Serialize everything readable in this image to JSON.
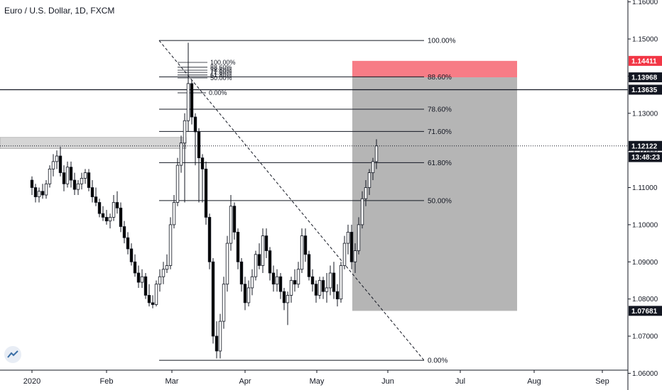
{
  "title": "Euro / U.S. Dollar, 1D, FXCM",
  "chart_data": {
    "type": "candlestick",
    "title": "Euro / U.S. Dollar, 1D, FXCM",
    "ylim": [
      1.0555,
      1.1605
    ],
    "y_ticks": [
      "1.16000",
      "1.15000",
      "1.14000",
      "1.13000",
      "1.12000",
      "1.11000",
      "1.10000",
      "1.09000",
      "1.08000",
      "1.07000",
      "1.06000"
    ],
    "y_tick_values": [
      1.16,
      1.15,
      1.14,
      1.13,
      1.12,
      1.11,
      1.1,
      1.09,
      1.08,
      1.07,
      1.06
    ],
    "x_ticks": [
      "2020",
      "Feb",
      "Mar",
      "Apr",
      "May",
      "Jun",
      "Jul",
      "Aug",
      "Sep"
    ],
    "x_tick_positions": [
      0,
      23,
      43,
      66,
      87,
      110,
      132,
      156,
      176
    ],
    "price_labels": [
      {
        "label": "1.14411",
        "value": 1.14411,
        "color": "#f23645",
        "text_color": "#ffffff"
      },
      {
        "label": "1.13968",
        "value": 1.13968,
        "color": "#131722",
        "text_color": "#ffffff"
      },
      {
        "label": "1.13635",
        "value": 1.13635,
        "color": "#131722",
        "text_color": "#ffffff"
      },
      {
        "label": "1.12122",
        "value": 1.12122,
        "color": "#131722",
        "text_color": "#ffffff"
      },
      {
        "label": "13:48:23",
        "value": 1.1182,
        "color": "#131722",
        "text_color": "#ffffff"
      },
      {
        "label": "1.07681",
        "value": 1.07681,
        "color": "#131722",
        "text_color": "#ffffff"
      }
    ],
    "fib_right": [
      {
        "label": "100.00%",
        "value": 1.1496
      },
      {
        "label": "88.60%",
        "value": 1.1398
      },
      {
        "label": "78.60%",
        "value": 1.1311
      },
      {
        "label": "71.60%",
        "value": 1.1251
      },
      {
        "label": "61.80%",
        "value": 1.1167
      },
      {
        "label": "50.00%",
        "value": 1.1065
      },
      {
        "label": "0.00%",
        "value": 1.0635
      }
    ],
    "fib_small": [
      {
        "label": "100.00%",
        "value": 1.1437
      },
      {
        "label": "88.60%",
        "value": 1.1424
      },
      {
        "label": "78.60%",
        "value": 1.1416
      },
      {
        "label": "71.60%",
        "value": 1.141
      },
      {
        "label": "61.80%",
        "value": 1.1403
      },
      {
        "label": "50.00%",
        "value": 1.1395
      },
      {
        "label": "0.00%",
        "value": 1.1355
      }
    ],
    "candles": [
      [
        1.112,
        1.113,
        1.108,
        1.11
      ],
      [
        1.11,
        1.111,
        1.106,
        1.1075
      ],
      [
        1.1075,
        1.11,
        1.106,
        1.109
      ],
      [
        1.109,
        1.111,
        1.107,
        1.108
      ],
      [
        1.108,
        1.112,
        1.107,
        1.111
      ],
      [
        1.111,
        1.116,
        1.11,
        1.115
      ],
      [
        1.115,
        1.119,
        1.113,
        1.117
      ],
      [
        1.117,
        1.12,
        1.115,
        1.1185
      ],
      [
        1.1185,
        1.121,
        1.113,
        1.114
      ],
      [
        1.114,
        1.116,
        1.109,
        1.111
      ],
      [
        1.111,
        1.117,
        1.11,
        1.1155
      ],
      [
        1.1155,
        1.117,
        1.11,
        1.112
      ],
      [
        1.112,
        1.114,
        1.108,
        1.1095
      ],
      [
        1.1095,
        1.112,
        1.108,
        1.111
      ],
      [
        1.111,
        1.114,
        1.1095,
        1.1125
      ],
      [
        1.1125,
        1.115,
        1.111,
        1.114
      ],
      [
        1.114,
        1.115,
        1.109,
        1.11
      ],
      [
        1.11,
        1.112,
        1.106,
        1.1075
      ],
      [
        1.1075,
        1.11,
        1.105,
        1.106
      ],
      [
        1.106,
        1.107,
        1.102,
        1.103
      ],
      [
        1.103,
        1.105,
        1.101,
        1.102
      ],
      [
        1.102,
        1.104,
        1.1,
        1.101
      ],
      [
        1.101,
        1.103,
        1.099,
        1.102
      ],
      [
        1.102,
        1.108,
        1.101,
        1.106
      ],
      [
        1.106,
        1.109,
        1.103,
        1.1045
      ],
      [
        1.1045,
        1.106,
        1.098,
        1.0995
      ],
      [
        1.0995,
        1.101,
        1.095,
        1.0965
      ],
      [
        1.0965,
        1.098,
        1.092,
        1.0935
      ],
      [
        1.0935,
        1.095,
        1.089,
        1.09
      ],
      [
        1.09,
        1.092,
        1.086,
        1.087
      ],
      [
        1.087,
        1.089,
        1.083,
        1.0845
      ],
      [
        1.0845,
        1.088,
        1.083,
        1.086
      ],
      [
        1.086,
        1.087,
        1.08,
        1.081
      ],
      [
        1.081,
        1.084,
        1.078,
        1.079
      ],
      [
        1.079,
        1.081,
        1.0775,
        1.0785
      ],
      [
        1.0785,
        1.085,
        1.078,
        1.084
      ],
      [
        1.084,
        1.088,
        1.082,
        1.086
      ],
      [
        1.086,
        1.09,
        1.084,
        1.088
      ],
      [
        1.088,
        1.092,
        1.087,
        1.089
      ],
      [
        1.089,
        1.102,
        1.088,
        1.1
      ],
      [
        1.1,
        1.108,
        1.099,
        1.106
      ],
      [
        1.106,
        1.118,
        1.105,
        1.116
      ],
      [
        1.116,
        1.124,
        1.114,
        1.122
      ],
      [
        1.122,
        1.13,
        1.106,
        1.128
      ],
      [
        1.128,
        1.149,
        1.125,
        1.138
      ],
      [
        1.138,
        1.139,
        1.127,
        1.129
      ],
      [
        1.129,
        1.13,
        1.116,
        1.125
      ],
      [
        1.125,
        1.126,
        1.106,
        1.118
      ],
      [
        1.118,
        1.119,
        1.106,
        1.115
      ],
      [
        1.115,
        1.117,
        1.1,
        1.102
      ],
      [
        1.102,
        1.103,
        1.088,
        1.09
      ],
      [
        1.09,
        1.091,
        1.068,
        1.07
      ],
      [
        1.07,
        1.074,
        1.064,
        1.066
      ],
      [
        1.066,
        1.076,
        1.064,
        1.074
      ],
      [
        1.074,
        1.086,
        1.072,
        1.084
      ],
      [
        1.084,
        1.097,
        1.082,
        1.095
      ],
      [
        1.095,
        1.108,
        1.093,
        1.105
      ],
      [
        1.105,
        1.106,
        1.096,
        1.098
      ],
      [
        1.098,
        1.099,
        1.088,
        1.09
      ],
      [
        1.09,
        1.091,
        1.082,
        1.084
      ],
      [
        1.084,
        1.086,
        1.077,
        1.079
      ],
      [
        1.079,
        1.085,
        1.078,
        1.083
      ],
      [
        1.083,
        1.088,
        1.081,
        1.086
      ],
      [
        1.086,
        1.093,
        1.085,
        1.092
      ],
      [
        1.092,
        1.095,
        1.088,
        1.089
      ],
      [
        1.089,
        1.099,
        1.087,
        1.097
      ],
      [
        1.097,
        1.099,
        1.091,
        1.093
      ],
      [
        1.093,
        1.094,
        1.085,
        1.087
      ],
      [
        1.087,
        1.089,
        1.082,
        1.084
      ],
      [
        1.084,
        1.088,
        1.082,
        1.086
      ],
      [
        1.086,
        1.087,
        1.08,
        1.082
      ],
      [
        1.082,
        1.083,
        1.077,
        1.079
      ],
      [
        1.079,
        1.082,
        1.073,
        1.081
      ],
      [
        1.081,
        1.086,
        1.079,
        1.085
      ],
      [
        1.085,
        1.088,
        1.082,
        1.084
      ],
      [
        1.084,
        1.09,
        1.083,
        1.088
      ],
      [
        1.088,
        1.099,
        1.087,
        1.097
      ],
      [
        1.097,
        1.099,
        1.09,
        1.092
      ],
      [
        1.092,
        1.093,
        1.085,
        1.086
      ],
      [
        1.086,
        1.088,
        1.082,
        1.084
      ],
      [
        1.084,
        1.085,
        1.079,
        1.081
      ],
      [
        1.081,
        1.086,
        1.08,
        1.085
      ],
      [
        1.085,
        1.086,
        1.08,
        1.082
      ],
      [
        1.082,
        1.087,
        1.079,
        1.083
      ],
      [
        1.083,
        1.089,
        1.081,
        1.087
      ],
      [
        1.087,
        1.09,
        1.08,
        1.082
      ],
      [
        1.082,
        1.084,
        1.078,
        1.08
      ],
      [
        1.08,
        1.09,
        1.079,
        1.089
      ],
      [
        1.089,
        1.097,
        1.088,
        1.095
      ],
      [
        1.095,
        1.1,
        1.092,
        1.098
      ],
      [
        1.098,
        1.1,
        1.088,
        1.09
      ],
      [
        1.09,
        1.095,
        1.087,
        1.093
      ],
      [
        1.093,
        1.102,
        1.092,
        1.1
      ],
      [
        1.1,
        1.109,
        1.099,
        1.107
      ],
      [
        1.107,
        1.112,
        1.105,
        1.11
      ],
      [
        1.11,
        1.115,
        1.108,
        1.114
      ],
      [
        1.114,
        1.118,
        1.112,
        1.117
      ],
      [
        1.117,
        1.123,
        1.115,
        1.1212
      ]
    ],
    "candle_x_start": 0.5,
    "bullish_color": "#ffffff",
    "bearish_color": "#000000"
  }
}
